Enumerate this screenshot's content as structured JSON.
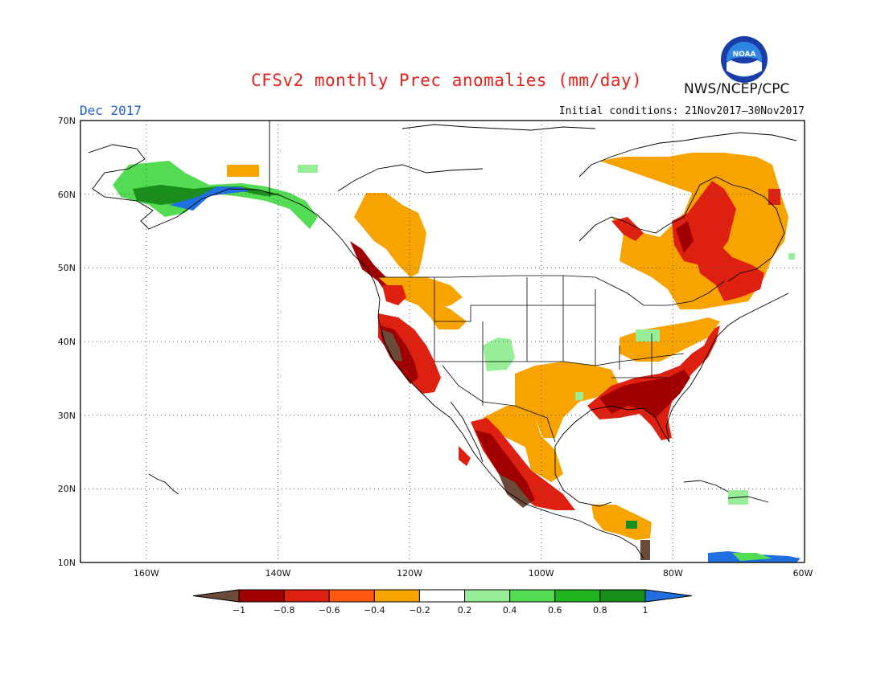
{
  "header": {
    "title": "CFSv2 monthly Prec anomalies (mm/day)",
    "month": "Dec 2017",
    "initial_conditions": "Initial conditions: 21Nov2017–30Nov2017",
    "agency": "NWS/NCEP/CPC",
    "logo_text": "NOAA"
  },
  "map": {
    "lat_labels": [
      "70N",
      "60N",
      "50N",
      "40N",
      "30N",
      "20N",
      "10N"
    ],
    "lon_labels": [
      "160W",
      "140W",
      "120W",
      "100W",
      "80W",
      "60W"
    ]
  },
  "colorbar": {
    "labels": [
      "−1",
      "−0.8",
      "−0.6",
      "−0.4",
      "−0.2",
      "0.2",
      "0.4",
      "0.6",
      "0.8",
      "1"
    ],
    "colors": [
      "#6b4a3a",
      "#a00000",
      "#dd2010",
      "#ff5a10",
      "#f7a300",
      "#ffffff",
      "#98ee98",
      "#54db54",
      "#21b421",
      "#1a8e1a",
      "#1f6fe0"
    ]
  }
}
